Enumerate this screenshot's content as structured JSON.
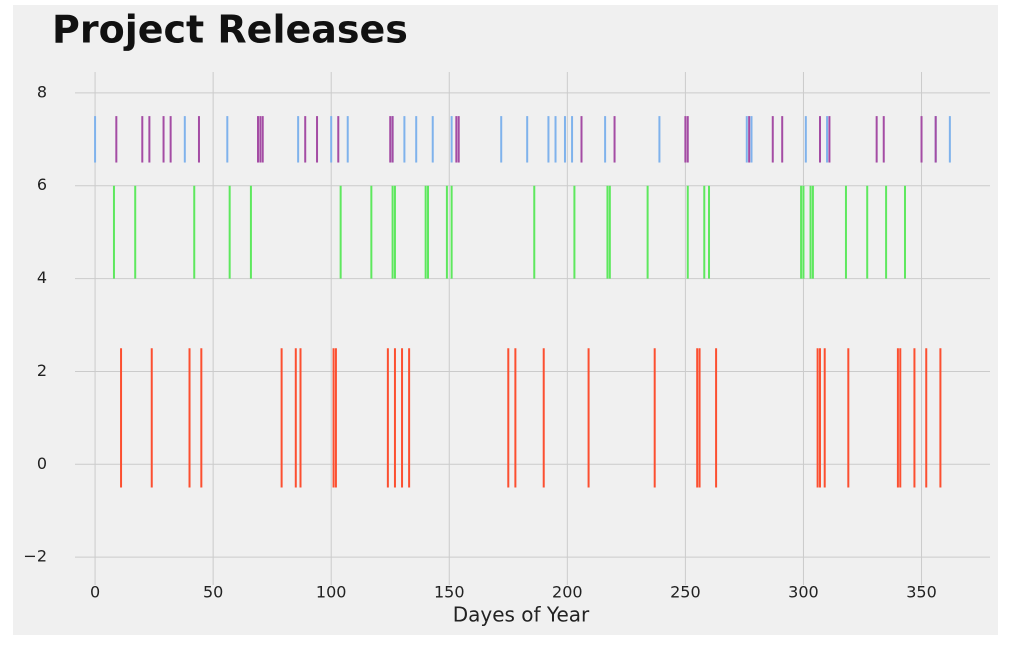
{
  "chart_data": {
    "type": "eventplot",
    "title": "Project Releases",
    "x_label": "Dayes of Year",
    "series": [
      {
        "color": "#fc4f30",
        "lineoffset": 1,
        "linelength": 3,
        "values": [
          11,
          24,
          40,
          45,
          79,
          85,
          87,
          101,
          102,
          124,
          127,
          130,
          133,
          175,
          178,
          190,
          209,
          237,
          255,
          256,
          263,
          306,
          307,
          309,
          319,
          340,
          341,
          347,
          352,
          358
        ]
      },
      {
        "color": "#5ee85e",
        "lineoffset": 5,
        "linelength": 2,
        "values": [
          8,
          17,
          42,
          57,
          66,
          104,
          117,
          126,
          127,
          140,
          141,
          149,
          151,
          186,
          203,
          217,
          218,
          234,
          251,
          258,
          260,
          299,
          300,
          303,
          304,
          318,
          327,
          335,
          343
        ]
      },
      {
        "color": "#7fb2ec",
        "lineoffset": 7,
        "linelength": 1,
        "values": [
          0,
          38,
          56,
          86,
          100,
          107,
          126,
          131,
          136,
          143,
          151,
          172,
          183,
          192,
          195,
          199,
          202,
          216,
          239,
          276,
          278,
          301,
          310,
          356,
          362
        ]
      },
      {
        "color": "#a44ca4",
        "lineoffset": 7,
        "linelength": 1,
        "values": [
          9,
          20,
          23,
          29,
          32,
          44,
          69,
          70,
          71,
          89,
          94,
          103,
          125,
          126,
          153,
          154,
          206,
          220,
          250,
          251,
          277,
          287,
          291,
          307,
          311,
          331,
          334,
          350,
          356
        ]
      }
    ],
    "xlim": [
      -8.5,
      379
    ],
    "xticks": [
      0,
      50,
      100,
      150,
      200,
      250,
      300,
      350
    ],
    "ylim": [
      -2.6,
      8.45
    ],
    "yticks": [
      {
        "value": -2,
        "label": "−2"
      },
      0,
      2,
      4,
      6,
      8
    ],
    "grid": true
  }
}
